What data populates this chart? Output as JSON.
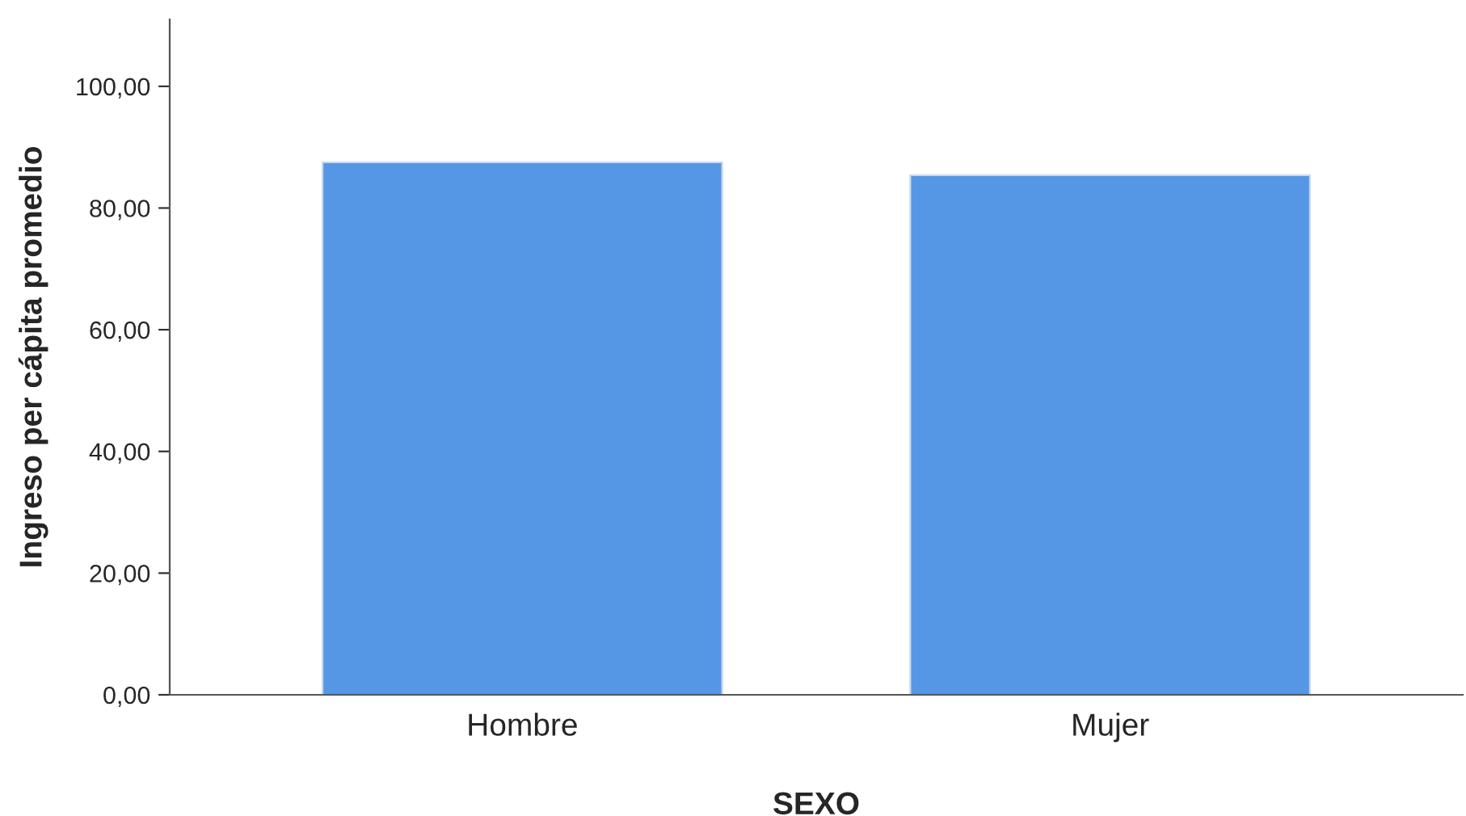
{
  "chart_data": {
    "type": "bar",
    "xlabel": "SEXO",
    "ylabel": "Ingreso per cápita promedio",
    "categories": [
      "Hombre",
      "Mujer"
    ],
    "values": [
      87.5,
      85.4
    ],
    "color": "#5596e5",
    "ylim": [
      0,
      111
    ],
    "yticks": [
      {
        "value": 0,
        "label": "0,00"
      },
      {
        "value": 20,
        "label": "20,00"
      },
      {
        "value": 40,
        "label": "40,00"
      },
      {
        "value": 60,
        "label": "60,00"
      },
      {
        "value": 80,
        "label": "80,00"
      },
      {
        "value": 100,
        "label": "100,00"
      }
    ],
    "grid": false,
    "legend": false
  }
}
